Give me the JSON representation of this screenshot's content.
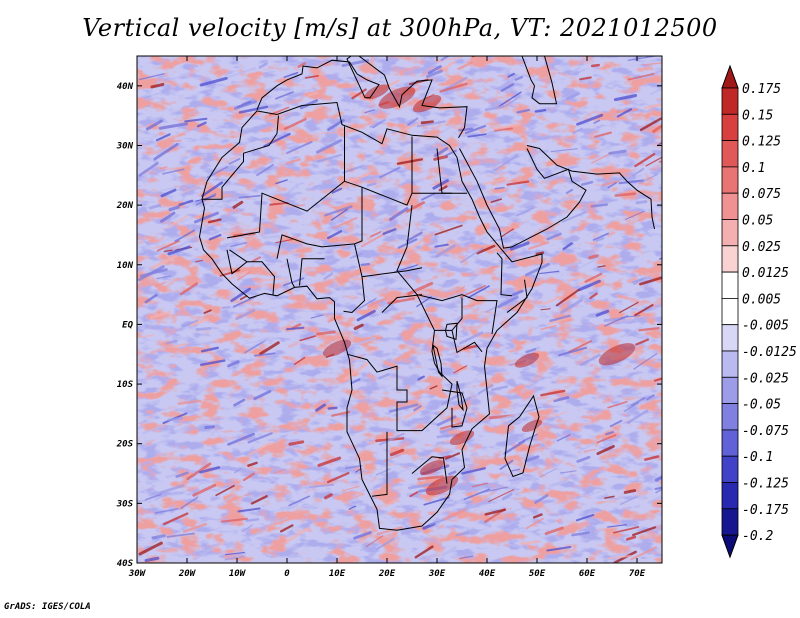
{
  "title": "Vertical velocity [m/s] at 300hPa, VT: 2021012500",
  "credit": "GrADS: IGES/COLA",
  "map": {
    "lon_range": [
      -30,
      75
    ],
    "lat_range": [
      -40,
      45
    ],
    "lon_ticks": [
      {
        "value": -30,
        "label": "30W"
      },
      {
        "value": -20,
        "label": "20W"
      },
      {
        "value": -10,
        "label": "10W"
      },
      {
        "value": 0,
        "label": "0"
      },
      {
        "value": 10,
        "label": "10E"
      },
      {
        "value": 20,
        "label": "20E"
      },
      {
        "value": 30,
        "label": "30E"
      },
      {
        "value": 40,
        "label": "40E"
      },
      {
        "value": 50,
        "label": "50E"
      },
      {
        "value": 60,
        "label": "60E"
      },
      {
        "value": 70,
        "label": "70E"
      }
    ],
    "lat_ticks": [
      {
        "value": 40,
        "label": "40N"
      },
      {
        "value": 30,
        "label": "30N"
      },
      {
        "value": 20,
        "label": "20N"
      },
      {
        "value": 10,
        "label": "10N"
      },
      {
        "value": 0,
        "label": "EQ"
      },
      {
        "value": -10,
        "label": "10S"
      },
      {
        "value": -20,
        "label": "20S"
      },
      {
        "value": -30,
        "label": "30S"
      },
      {
        "value": -40,
        "label": "40S"
      }
    ]
  },
  "colorbar": {
    "levels": [
      "0.175",
      "0.15",
      "0.125",
      "0.1",
      "0.075",
      "0.05",
      "0.025",
      "0.0125",
      "0.005",
      "-0.005",
      "-0.0125",
      "-0.025",
      "-0.05",
      "-0.075",
      "-0.1",
      "-0.125",
      "-0.175",
      "-0.2"
    ],
    "colors": [
      "#a01818",
      "#c02828",
      "#d84040",
      "#e05858",
      "#e87474",
      "#f09292",
      "#f4b0b0",
      "#f9d2d2",
      "#ffffff",
      "#ffffff",
      "#d8d8f6",
      "#babaf0",
      "#9c9ce8",
      "#8080e0",
      "#6262d8",
      "#4242c8",
      "#2828b0",
      "#161690",
      "#0c0c78"
    ]
  }
}
